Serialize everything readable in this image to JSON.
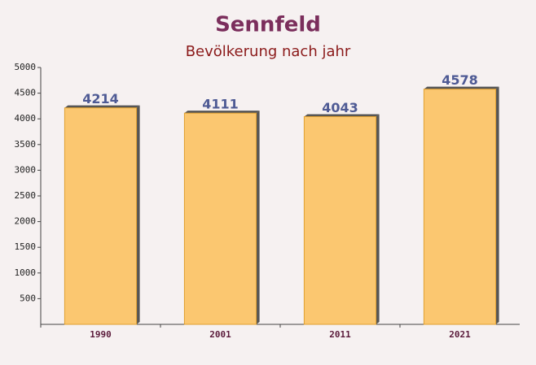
{
  "chart_data": {
    "type": "bar",
    "title": "Sennfeld",
    "subtitle": "Bevölkerung nach jahr",
    "categories": [
      "1990",
      "2001",
      "2011",
      "2021"
    ],
    "values": [
      4214,
      4111,
      4043,
      4578
    ],
    "color": "#fbbf59",
    "ylim": [
      0,
      5000
    ],
    "yticks": [
      500,
      1000,
      1500,
      2000,
      2500,
      3000,
      3500,
      4000,
      4500,
      5000
    ]
  }
}
